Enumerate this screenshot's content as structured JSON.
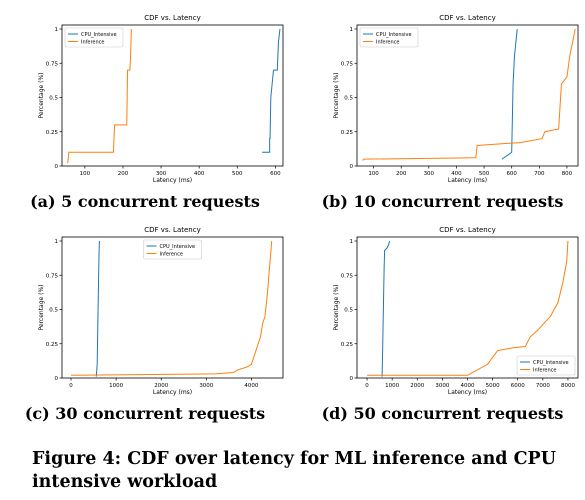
{
  "colors": {
    "cpu": "#1f77b4",
    "inference": "#ff7f0e"
  },
  "figure_caption": "Figure 4: CDF over latency for ML inference and CPU intensive workload",
  "chart_data": [
    {
      "type": "line",
      "title": "CDF vs. Latency",
      "xlabel": "Latency (ms)",
      "ylabel": "Percentage (%)",
      "xlim": [
        40,
        620
      ],
      "ylim": [
        0,
        1
      ],
      "xticks": [
        100,
        200,
        300,
        400,
        500,
        600
      ],
      "yticks": [
        0,
        0.25,
        0.5,
        0.75,
        1
      ],
      "ytick_labels": [
        "0",
        "0.25",
        "0.5",
        "0.75",
        "1"
      ],
      "legend": "top-left",
      "subcaption": "(a) 5 concurrent requests",
      "series": [
        {
          "name": "CPU_Intensive",
          "color": "#1f77b4",
          "points": [
            [
              565,
              0.1
            ],
            [
              585,
              0.1
            ],
            [
              585,
              0.2
            ],
            [
              586,
              0.2
            ],
            [
              588,
              0.5
            ],
            [
              595,
              0.7
            ],
            [
              605,
              0.7
            ],
            [
              608,
              0.9
            ],
            [
              612,
              1.0
            ]
          ]
        },
        {
          "name": "Inference",
          "color": "#ff7f0e",
          "points": [
            [
              55,
              0.02
            ],
            [
              58,
              0.1
            ],
            [
              175,
              0.1
            ],
            [
              178,
              0.3
            ],
            [
              210,
              0.3
            ],
            [
              212,
              0.7
            ],
            [
              218,
              0.7
            ],
            [
              220,
              0.8
            ],
            [
              222,
              1.0
            ]
          ]
        }
      ]
    },
    {
      "type": "line",
      "title": "CDF vs. Latency",
      "xlabel": "Latency (ms)",
      "ylabel": "Percentage (%)",
      "xlim": [
        40,
        840
      ],
      "ylim": [
        0,
        1
      ],
      "xticks": [
        100,
        200,
        300,
        400,
        500,
        600,
        700,
        800
      ],
      "yticks": [
        0,
        0.25,
        0.5,
        0.75,
        1
      ],
      "ytick_labels": [
        "0",
        "0.25",
        "0.5",
        "0.75",
        "1"
      ],
      "legend": "top-left",
      "subcaption": "(b) 10 concurrent requests",
      "series": [
        {
          "name": "CPU_Intensive",
          "color": "#1f77b4",
          "points": [
            [
              565,
              0.05
            ],
            [
              600,
              0.1
            ],
            [
              605,
              0.6
            ],
            [
              610,
              0.8
            ],
            [
              615,
              0.9
            ],
            [
              620,
              1.0
            ]
          ]
        },
        {
          "name": "Inference",
          "color": "#ff7f0e",
          "points": [
            [
              60,
              0.04
            ],
            [
              65,
              0.05
            ],
            [
              470,
              0.06
            ],
            [
              475,
              0.15
            ],
            [
              620,
              0.17
            ],
            [
              630,
              0.17
            ],
            [
              710,
              0.2
            ],
            [
              720,
              0.25
            ],
            [
              770,
              0.27
            ],
            [
              780,
              0.6
            ],
            [
              800,
              0.65
            ],
            [
              810,
              0.8
            ],
            [
              820,
              0.9
            ],
            [
              830,
              1.0
            ]
          ]
        }
      ]
    },
    {
      "type": "line",
      "title": "CDF vs. Latency",
      "xlabel": "Latency (ms)",
      "ylabel": "Percentage (%)",
      "xlim": [
        -200,
        4700
      ],
      "ylim": [
        0,
        1
      ],
      "xticks": [
        0,
        1000,
        2000,
        3000,
        4000
      ],
      "yticks": [
        0,
        0.25,
        0.5,
        0.75,
        1
      ],
      "ytick_labels": [
        "0",
        "0.25",
        "0.5",
        "0.75",
        "1"
      ],
      "legend": "top-center",
      "subcaption": "(c) 30 concurrent requests",
      "series": [
        {
          "name": "CPU_Intensive",
          "color": "#1f77b4",
          "points": [
            [
              560,
              0.01
            ],
            [
              580,
              0.1
            ],
            [
              590,
              0.3
            ],
            [
              600,
              0.5
            ],
            [
              610,
              0.7
            ],
            [
              620,
              0.9
            ],
            [
              630,
              1.0
            ]
          ]
        },
        {
          "name": "Inference",
          "color": "#ff7f0e",
          "points": [
            [
              0,
              0.02
            ],
            [
              3200,
              0.03
            ],
            [
              3600,
              0.04
            ],
            [
              3700,
              0.06
            ],
            [
              3900,
              0.08
            ],
            [
              4000,
              0.1
            ],
            [
              4100,
              0.2
            ],
            [
              4150,
              0.25
            ],
            [
              4200,
              0.3
            ],
            [
              4250,
              0.4
            ],
            [
              4300,
              0.45
            ],
            [
              4350,
              0.6
            ],
            [
              4400,
              0.8
            ],
            [
              4450,
              1.0
            ]
          ]
        }
      ]
    },
    {
      "type": "line",
      "title": "CDF vs. Latency",
      "xlabel": "Latency (ms)",
      "ylabel": "Percentage (%)",
      "xlim": [
        -400,
        8400
      ],
      "ylim": [
        0,
        1
      ],
      "xticks": [
        0,
        1000,
        2000,
        3000,
        4000,
        5000,
        6000,
        7000,
        8000
      ],
      "yticks": [
        0,
        0.25,
        0.5,
        0.75,
        1
      ],
      "ytick_labels": [
        "0",
        "0.25",
        "0.5",
        "0.75",
        "1"
      ],
      "legend": "bottom-right",
      "subcaption": "(d) 50 concurrent requests",
      "series": [
        {
          "name": "CPU_Intensive",
          "color": "#1f77b4",
          "points": [
            [
              600,
              0.01
            ],
            [
              620,
              0.2
            ],
            [
              650,
              0.5
            ],
            [
              680,
              0.8
            ],
            [
              700,
              0.93
            ],
            [
              800,
              0.95
            ],
            [
              850,
              0.97
            ],
            [
              900,
              1.0
            ]
          ]
        },
        {
          "name": "Inference",
          "color": "#ff7f0e",
          "points": [
            [
              0,
              0.02
            ],
            [
              4000,
              0.02
            ],
            [
              4300,
              0.05
            ],
            [
              4800,
              0.1
            ],
            [
              5000,
              0.15
            ],
            [
              5200,
              0.2
            ],
            [
              5800,
              0.22
            ],
            [
              6300,
              0.23
            ],
            [
              6500,
              0.3
            ],
            [
              6800,
              0.35
            ],
            [
              7300,
              0.45
            ],
            [
              7600,
              0.55
            ],
            [
              7800,
              0.7
            ],
            [
              7950,
              0.85
            ],
            [
              8000,
              1.0
            ]
          ]
        }
      ]
    }
  ]
}
